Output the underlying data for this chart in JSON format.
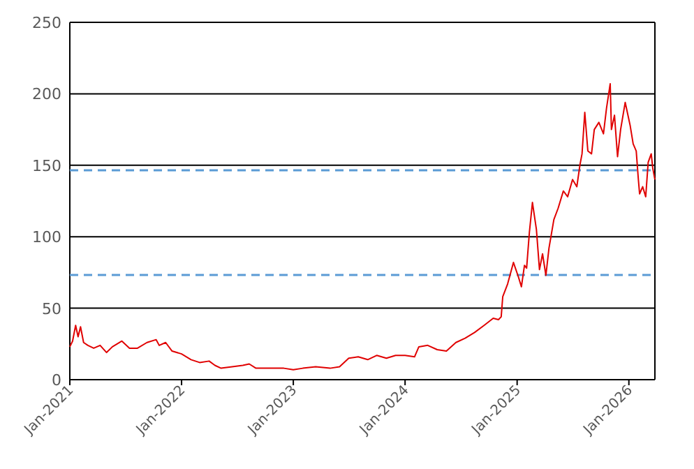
{
  "chart_data": {
    "type": "line",
    "xlim": [
      "2021-01-01",
      "2026-03-27"
    ],
    "xticks": [
      {
        "value": "2021-01-01",
        "label": "Jan-2021"
      },
      {
        "value": "2022-01-01",
        "label": "Jan-2022"
      },
      {
        "value": "2023-01-01",
        "label": "Jan-2023"
      },
      {
        "value": "2024-01-01",
        "label": "Jan-2024"
      },
      {
        "value": "2025-01-01",
        "label": "Jan-2025"
      },
      {
        "value": "2026-01-01",
        "label": "Jan-2026"
      }
    ],
    "ylim": [
      0,
      250
    ],
    "yticks": [
      0,
      50,
      100,
      150,
      200,
      250
    ],
    "grid": "y",
    "marker": "none",
    "line_style": "solid",
    "ref_lines": [
      {
        "axis": "y",
        "value": 146.5,
        "color": "#5b9bd5",
        "line_style": "dashed"
      },
      {
        "axis": "y",
        "value": 73.3,
        "color": "#5b9bd5",
        "line_style": "dashed"
      }
    ],
    "series": [
      {
        "color": "#e00000",
        "x": [
          "2021-01-01",
          "2021-01-10",
          "2021-01-20",
          "2021-01-28",
          "2021-02-05",
          "2021-02-15",
          "2021-03-01",
          "2021-03-20",
          "2021-04-10",
          "2021-05-01",
          "2021-05-20",
          "2021-06-20",
          "2021-07-15",
          "2021-08-10",
          "2021-09-10",
          "2021-10-10",
          "2021-10-20",
          "2021-11-10",
          "2021-12-01",
          "2022-01-01",
          "2022-02-01",
          "2022-03-01",
          "2022-04-01",
          "2022-04-20",
          "2022-05-10",
          "2022-06-15",
          "2022-07-20",
          "2022-08-10",
          "2022-09-01",
          "2022-10-15",
          "2022-12-01",
          "2023-01-01",
          "2023-02-01",
          "2023-03-15",
          "2023-05-01",
          "2023-06-01",
          "2023-07-01",
          "2023-08-01",
          "2023-09-01",
          "2023-10-01",
          "2023-11-01",
          "2023-12-01",
          "2024-01-01",
          "2024-02-01",
          "2024-02-15",
          "2024-03-15",
          "2024-04-15",
          "2024-05-15",
          "2024-06-15",
          "2024-07-15",
          "2024-08-15",
          "2024-09-15",
          "2024-10-15",
          "2024-11-01",
          "2024-11-10",
          "2024-11-15",
          "2024-12-01",
          "2024-12-20",
          "2025-01-05",
          "2025-01-15",
          "2025-01-25",
          "2025-02-01",
          "2025-02-10",
          "2025-02-20",
          "2025-03-05",
          "2025-03-15",
          "2025-03-25",
          "2025-04-05",
          "2025-04-15",
          "2025-05-01",
          "2025-05-15",
          "2025-06-01",
          "2025-06-15",
          "2025-07-01",
          "2025-07-15",
          "2025-07-25",
          "2025-08-01",
          "2025-08-10",
          "2025-08-20",
          "2025-09-01",
          "2025-09-10",
          "2025-09-25",
          "2025-10-10",
          "2025-10-20",
          "2025-11-01",
          "2025-11-05",
          "2025-11-15",
          "2025-11-25",
          "2025-12-05",
          "2025-12-20",
          "2026-01-05",
          "2026-01-15",
          "2026-01-25",
          "2026-02-01",
          "2026-02-05",
          "2026-02-15",
          "2026-02-25",
          "2026-03-05",
          "2026-03-15",
          "2026-03-20",
          "2026-03-27"
        ],
        "values": [
          23,
          27,
          38,
          30,
          37,
          26,
          24,
          22,
          24,
          19,
          23,
          27,
          22,
          22,
          26,
          28,
          24,
          26,
          20,
          18,
          14,
          12,
          13,
          10,
          8,
          9,
          10,
          11,
          8,
          8,
          8,
          7,
          8,
          9,
          8,
          9,
          15,
          16,
          14,
          17,
          15,
          17,
          17,
          16,
          23,
          24,
          21,
          20,
          26,
          29,
          33,
          38,
          43,
          42,
          44,
          58,
          67,
          82,
          72,
          65,
          80,
          78,
          103,
          124,
          105,
          77,
          88,
          73,
          92,
          112,
          120,
          132,
          128,
          140,
          135,
          150,
          158,
          187,
          160,
          158,
          175,
          180,
          172,
          190,
          207,
          175,
          185,
          156,
          175,
          194,
          178,
          165,
          160,
          140,
          130,
          135,
          128,
          152,
          158,
          148,
          140
        ]
      }
    ]
  }
}
